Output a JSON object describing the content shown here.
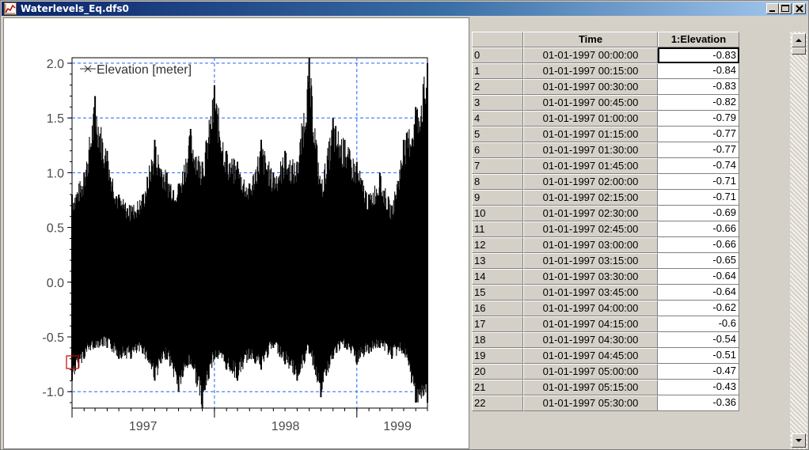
{
  "window": {
    "title": "Waterlevels_Eq.dfs0"
  },
  "controls": {
    "minimize": "minimize",
    "maximize": "maximize",
    "close": "close"
  },
  "icons": [
    "chart-app-icon",
    "minimize-icon",
    "maximize-icon",
    "close-icon",
    "scroll-up-arrow-icon",
    "scroll-down-arrow-icon"
  ],
  "colors": {
    "title_start": "#0a246a",
    "title_end": "#a6caf0",
    "series": "#000000",
    "grid": "#1e64ff",
    "cursor_box": "#cc0000"
  },
  "chart_data": {
    "type": "line",
    "legend": [
      "Elevation [meter]"
    ],
    "legend_position": "top-left",
    "marker": "x",
    "grid": true,
    "ylim": [
      -1.15,
      2.05
    ],
    "yticks": [
      "2.0",
      "1.5",
      "1.0",
      "0.5",
      "0.0",
      "-0.5",
      "-1.0"
    ],
    "xticks": [
      "1997",
      "1998",
      "1999"
    ],
    "x_range": [
      "1997-01-01",
      "1999-07-01"
    ],
    "series": [
      {
        "name": "Elevation [meter]",
        "envelope": {
          "x": [
            "1997-01-01",
            "1997-02-01",
            "1997-03-01",
            "1997-04-01",
            "1997-05-01",
            "1997-06-01",
            "1997-07-01",
            "1997-08-01",
            "1997-09-01",
            "1997-10-01",
            "1997-11-01",
            "1997-12-01",
            "1998-01-01",
            "1998-02-01",
            "1998-03-01",
            "1998-04-01",
            "1998-05-01",
            "1998-06-01",
            "1998-07-01",
            "1998-08-01",
            "1998-09-01",
            "1998-10-01",
            "1998-11-01",
            "1998-12-01",
            "1999-01-01",
            "1999-02-01",
            "1999-03-01",
            "1999-04-01",
            "1999-05-01",
            "1999-06-01",
            "1999-07-01"
          ],
          "max": [
            0.8,
            1.0,
            1.7,
            1.2,
            0.8,
            0.7,
            0.8,
            1.3,
            1.0,
            0.9,
            1.4,
            1.1,
            1.8,
            1.2,
            1.1,
            0.9,
            1.3,
            1.0,
            1.2,
            1.1,
            2.05,
            0.9,
            1.5,
            1.3,
            1.1,
            0.8,
            1.0,
            0.7,
            1.3,
            1.6,
            2.0
          ],
          "min": [
            -0.9,
            -0.7,
            -0.6,
            -0.6,
            -0.7,
            -0.7,
            -0.65,
            -0.9,
            -0.7,
            -1.0,
            -0.75,
            -1.15,
            -0.7,
            -0.8,
            -0.9,
            -0.7,
            -0.8,
            -0.6,
            -0.75,
            -0.9,
            -0.65,
            -1.05,
            -0.7,
            -0.6,
            -0.75,
            -0.65,
            -0.6,
            -0.7,
            -0.65,
            -1.1,
            -1.1
          ]
        }
      }
    ]
  },
  "table": {
    "columns": [
      "",
      "Time",
      "1:Elevation"
    ],
    "rows": [
      [
        "0",
        "01-01-1997 00:00:00",
        "-0.83"
      ],
      [
        "1",
        "01-01-1997 00:15:00",
        "-0.84"
      ],
      [
        "2",
        "01-01-1997 00:30:00",
        "-0.83"
      ],
      [
        "3",
        "01-01-1997 00:45:00",
        "-0.82"
      ],
      [
        "4",
        "01-01-1997 01:00:00",
        "-0.79"
      ],
      [
        "5",
        "01-01-1997 01:15:00",
        "-0.77"
      ],
      [
        "6",
        "01-01-1997 01:30:00",
        "-0.77"
      ],
      [
        "7",
        "01-01-1997 01:45:00",
        "-0.74"
      ],
      [
        "8",
        "01-01-1997 02:00:00",
        "-0.71"
      ],
      [
        "9",
        "01-01-1997 02:15:00",
        "-0.71"
      ],
      [
        "10",
        "01-01-1997 02:30:00",
        "-0.69"
      ],
      [
        "11",
        "01-01-1997 02:45:00",
        "-0.66"
      ],
      [
        "12",
        "01-01-1997 03:00:00",
        "-0.66"
      ],
      [
        "13",
        "01-01-1997 03:15:00",
        "-0.65"
      ],
      [
        "14",
        "01-01-1997 03:30:00",
        "-0.64"
      ],
      [
        "15",
        "01-01-1997 03:45:00",
        "-0.64"
      ],
      [
        "16",
        "01-01-1997 04:00:00",
        "-0.62"
      ],
      [
        "17",
        "01-01-1997 04:15:00",
        "-0.6"
      ],
      [
        "18",
        "01-01-1997 04:30:00",
        "-0.54"
      ],
      [
        "19",
        "01-01-1997 04:45:00",
        "-0.51"
      ],
      [
        "20",
        "01-01-1997 05:00:00",
        "-0.47"
      ],
      [
        "21",
        "01-01-1997 05:15:00",
        "-0.43"
      ],
      [
        "22",
        "01-01-1997 05:30:00",
        "-0.36"
      ]
    ]
  }
}
